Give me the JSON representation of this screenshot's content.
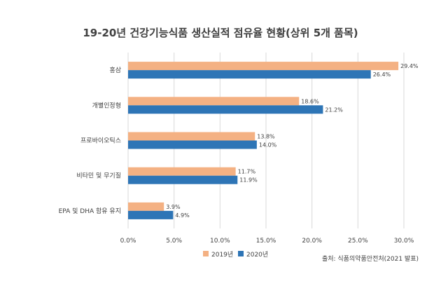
{
  "chart_data": {
    "type": "bar",
    "orientation": "horizontal",
    "title": "19-20년 건강기능식품 생산실적 점유율 현황(상위 5개 품목)",
    "categories": [
      "홍삼",
      "개별인정형",
      "프로바이오틱스",
      "비타민 및 무기질",
      "EPA 및 DHA 함유 유지"
    ],
    "series": [
      {
        "name": "2019년",
        "values": [
          29.4,
          18.6,
          13.8,
          11.7,
          3.9
        ],
        "data_labels": [
          "29.4%",
          "18.6%",
          "13.8%",
          "11.7%",
          "3.9%"
        ],
        "color": "#F4B183"
      },
      {
        "name": "2020년",
        "values": [
          26.4,
          21.2,
          14.0,
          11.9,
          4.9
        ],
        "data_labels": [
          "26.4%",
          "21.2%",
          "14.0%",
          "11.9%",
          "4.9%"
        ],
        "color": "#2E75B6"
      }
    ],
    "xlim": [
      0,
      30
    ],
    "xticks": [
      0,
      5,
      10,
      15,
      20,
      25,
      30
    ],
    "xtick_labels": [
      "0.0%",
      "5.0%",
      "10.0%",
      "15.0%",
      "20.0%",
      "25.0%",
      "30.0%"
    ],
    "grid": true,
    "legend_position": "bottom",
    "source": "출처: 식품의약품안전처(2021 발표)"
  }
}
